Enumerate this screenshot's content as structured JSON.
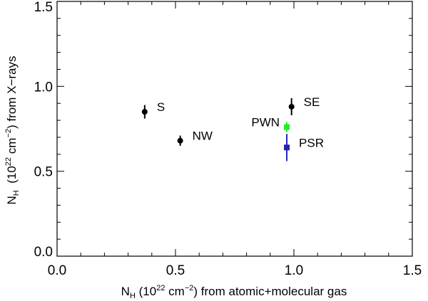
{
  "chart_data": {
    "type": "scatter",
    "title": "",
    "xlabel": {
      "base": "N",
      "sub": "H",
      "open": " (10",
      "sup": "22",
      "unit": " cm",
      "sup2": "−2",
      "close": ") from atomic+molecular gas"
    },
    "ylabel": {
      "base": "N",
      "sub": "H",
      "open": "  (10",
      "sup": "22",
      "unit": " cm",
      "sup2": "−2",
      "close": ") from X−rays"
    },
    "xlim": [
      0.0,
      1.5
    ],
    "ylim": [
      0.0,
      1.5
    ],
    "xticks": [
      {
        "value": 0.0,
        "label": "0.0"
      },
      {
        "value": 0.5,
        "label": "0.5"
      },
      {
        "value": 1.0,
        "label": "1.0"
      },
      {
        "value": 1.5,
        "label": "1.5"
      }
    ],
    "yticks": [
      {
        "value": 0.0,
        "label": "0.0"
      },
      {
        "value": 0.5,
        "label": "0.5"
      },
      {
        "value": 1.0,
        "label": "1.0"
      },
      {
        "value": 1.5,
        "label": "1.5"
      }
    ],
    "series": [
      {
        "name": "S",
        "x": 0.37,
        "y": 0.85,
        "yerr": 0.04,
        "marker": "circle",
        "color": "#000000",
        "label_side": "right"
      },
      {
        "name": "NW",
        "x": 0.52,
        "y": 0.68,
        "yerr": 0.03,
        "marker": "circle",
        "color": "#000000",
        "label_side": "right"
      },
      {
        "name": "SE",
        "x": 0.99,
        "y": 0.88,
        "yerr": 0.05,
        "marker": "circle",
        "color": "#000000",
        "label_side": "right"
      },
      {
        "name": "PWN",
        "x": 0.97,
        "y": 0.76,
        "yerr": 0.03,
        "marker": "square",
        "color": "#22ee22",
        "label_side": "left"
      },
      {
        "name": "PSR",
        "x": 0.97,
        "y": 0.64,
        "yerr": 0.08,
        "marker": "square",
        "color": "#2222bb",
        "label_side": "right"
      }
    ]
  }
}
